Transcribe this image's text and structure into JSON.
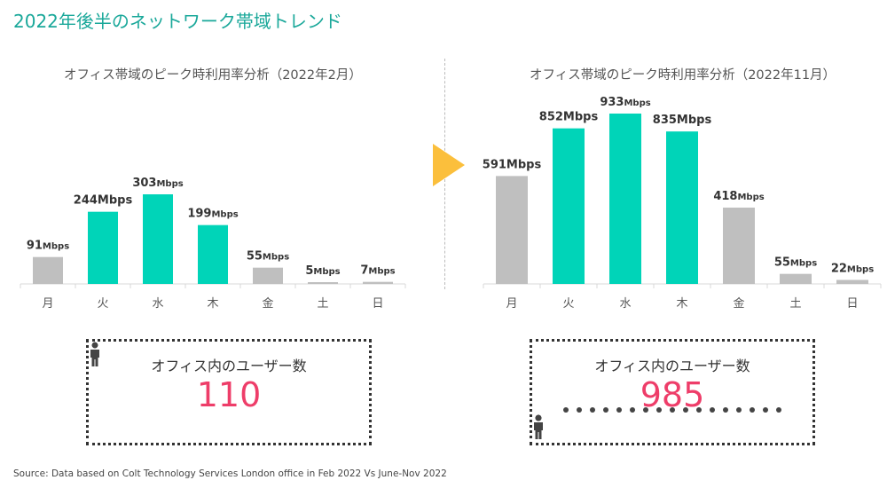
{
  "title": "2022年後半のネットワーク帯域トレンド",
  "colors": {
    "highlight": "#00d4b8",
    "normal": "#bfbfbf",
    "accent": "#ee3d69",
    "arrow": "#fbbf3c"
  },
  "chart_data": [
    {
      "type": "bar",
      "title": "オフィス帯域のピーク時利用率分析（2022年2月）",
      "categories": [
        "月",
        "火",
        "水",
        "木",
        "金",
        "土",
        "日"
      ],
      "values": [
        91,
        244,
        303,
        199,
        55,
        5,
        7
      ],
      "unit": "Mbps",
      "highlight": [
        false,
        true,
        true,
        true,
        false,
        false,
        false
      ],
      "ylim": [
        0,
        303
      ]
    },
    {
      "type": "bar",
      "title": "オフィス帯域のピーク時利用率分析（2022年11月）",
      "categories": [
        "月",
        "火",
        "水",
        "木",
        "金",
        "土",
        "日"
      ],
      "values": [
        591,
        852,
        933,
        835,
        418,
        55,
        22
      ],
      "unit": "Mbps",
      "highlight": [
        false,
        true,
        true,
        true,
        false,
        false,
        false
      ],
      "ylim": [
        0,
        933
      ]
    }
  ],
  "users": [
    {
      "label": "オフィス内のユーザー数",
      "count": "110"
    },
    {
      "label": "オフィス内のユーザー数",
      "count": "985"
    }
  ],
  "source": "Source: Data based on Colt Technology Services London office in Feb 2022 Vs June-Nov 2022"
}
